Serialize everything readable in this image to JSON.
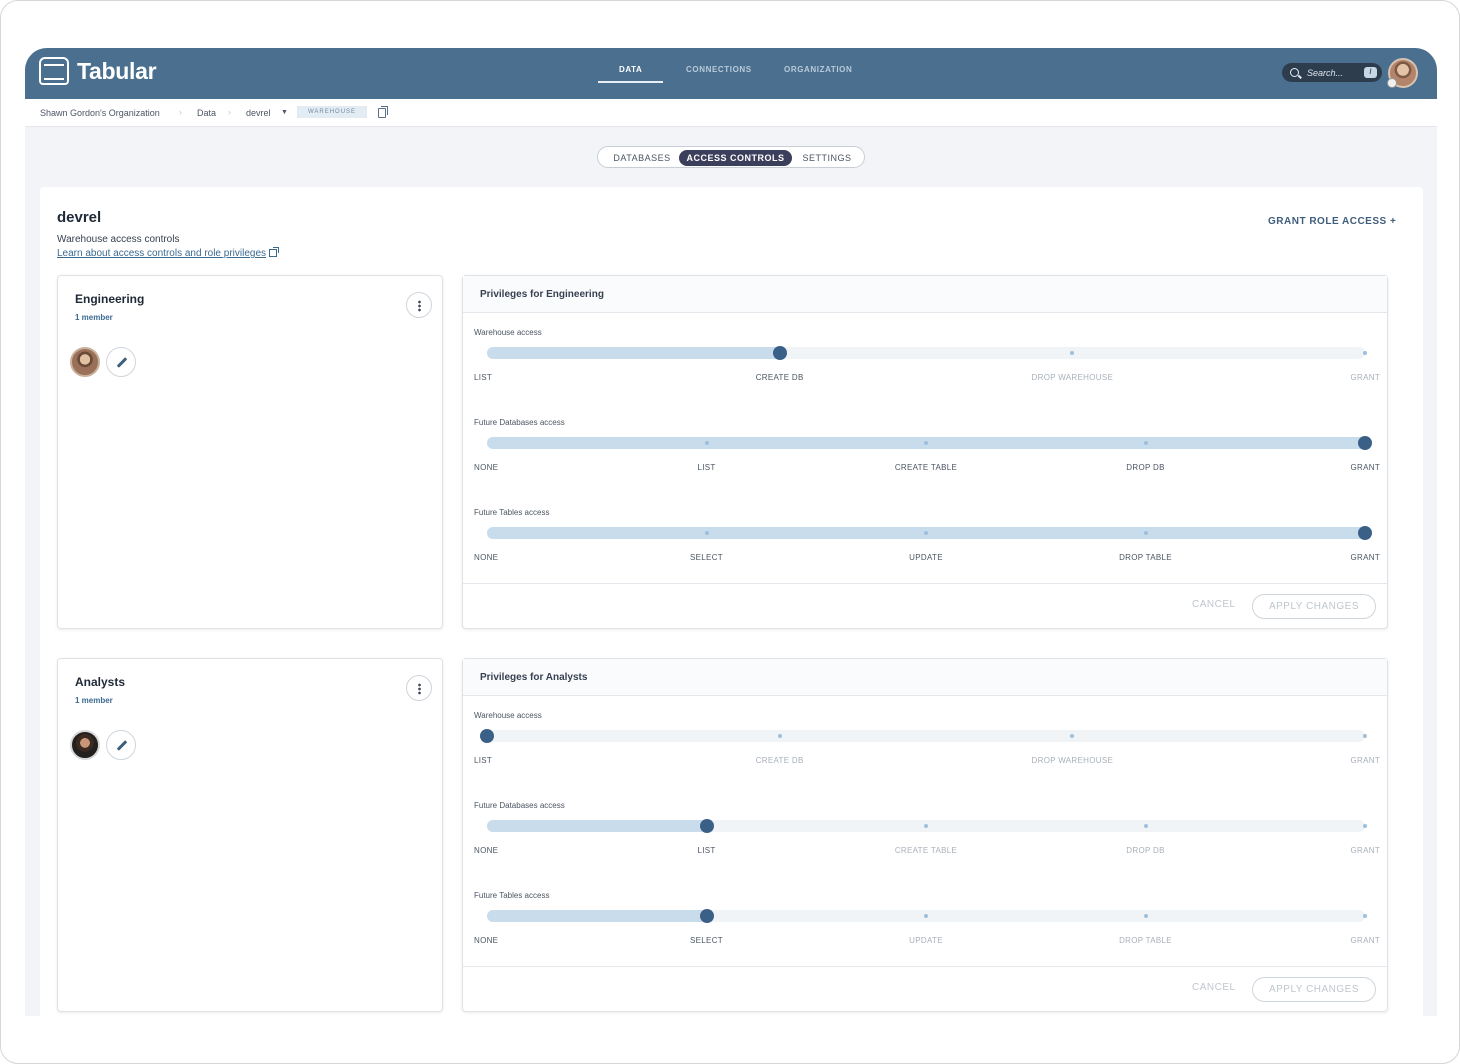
{
  "app": {
    "name": "Tabular"
  },
  "nav": {
    "tabs": [
      "DATA",
      "CONNECTIONS",
      "ORGANIZATION"
    ],
    "active": "DATA"
  },
  "search": {
    "placeholder": "Search...",
    "shortcut": "/"
  },
  "breadcrumb": {
    "org": "Shawn Gordon's Organization",
    "data": "Data",
    "warehouse": "devrel",
    "badge": "WAREHOUSE"
  },
  "tabs": {
    "items": [
      "DATABASES",
      "ACCESS CONTROLS",
      "SETTINGS"
    ],
    "active": "ACCESS CONTROLS"
  },
  "page": {
    "title": "devrel",
    "subtitle": "Warehouse access controls",
    "learn_link": "Learn about access controls and role privileges",
    "grant_button": "GRANT ROLE ACCESS +"
  },
  "roles": [
    {
      "name": "Engineering",
      "members": "1 member",
      "privileges_title": "Privileges for Engineering",
      "sliders": [
        {
          "label": "Warehouse access",
          "levels": [
            "LIST",
            "CREATE DB",
            "DROP WAREHOUSE",
            "GRANT"
          ],
          "value": "CREATE DB"
        },
        {
          "label": "Future Databases access",
          "levels": [
            "NONE",
            "LIST",
            "CREATE TABLE",
            "DROP DB",
            "GRANT"
          ],
          "value": "GRANT"
        },
        {
          "label": "Future Tables access",
          "levels": [
            "NONE",
            "SELECT",
            "UPDATE",
            "DROP TABLE",
            "GRANT"
          ],
          "value": "GRANT"
        }
      ],
      "cancel": "CANCEL",
      "apply": "APPLY CHANGES"
    },
    {
      "name": "Analysts",
      "members": "1 member",
      "privileges_title": "Privileges for Analysts",
      "sliders": [
        {
          "label": "Warehouse access",
          "levels": [
            "LIST",
            "CREATE DB",
            "DROP WAREHOUSE",
            "GRANT"
          ],
          "value": "LIST"
        },
        {
          "label": "Future Databases access",
          "levels": [
            "NONE",
            "LIST",
            "CREATE TABLE",
            "DROP DB",
            "GRANT"
          ],
          "value": "LIST"
        },
        {
          "label": "Future Tables access",
          "levels": [
            "NONE",
            "SELECT",
            "UPDATE",
            "DROP TABLE",
            "GRANT"
          ],
          "value": "SELECT"
        }
      ],
      "cancel": "CANCEL",
      "apply": "APPLY CHANGES"
    }
  ],
  "colors": {
    "header": "#4a6f8f",
    "active_tab": "#3c3f5c",
    "slider_thumb": "#3b6088",
    "slider_fill": "#c9dcec",
    "link": "#3b6a91"
  }
}
